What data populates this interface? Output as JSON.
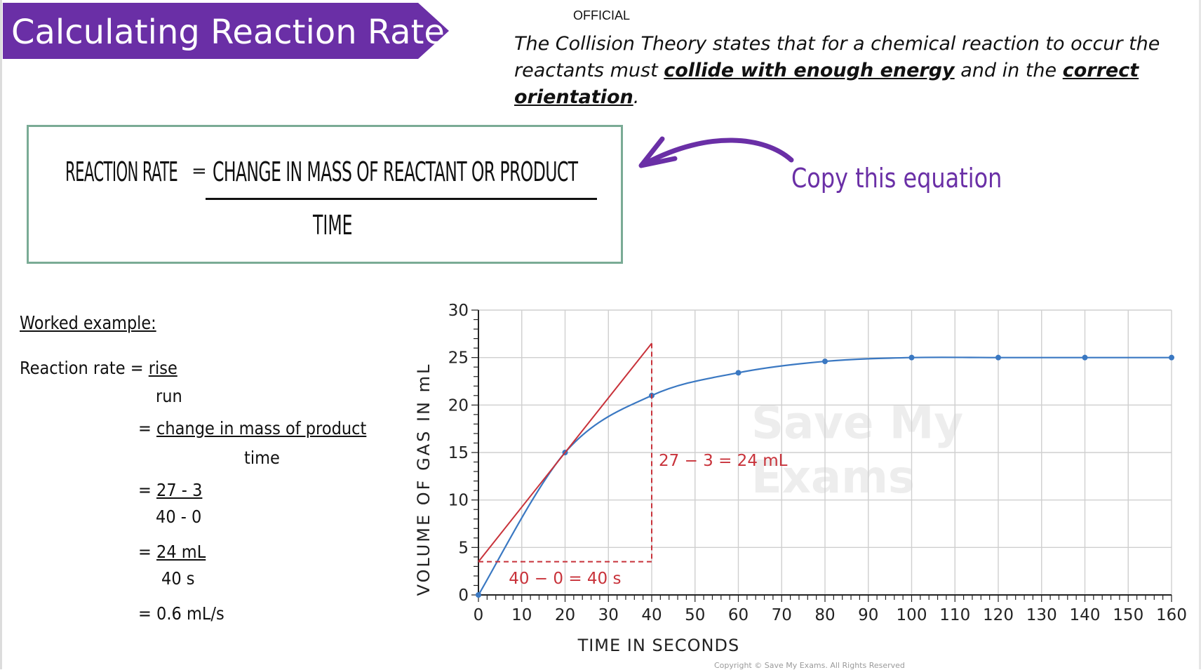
{
  "header": {
    "title": "Calculating Reaction Rate",
    "banner_color": "#6a2fa6",
    "classification": "OFFICIAL"
  },
  "collision_theory": {
    "part1": "The Collision Theory states that for a chemical reaction to occur the reactants must ",
    "bold1": "collide with enough energy",
    "part2": " and in the ",
    "bold2": "correct orientation",
    "part3": "."
  },
  "equation": {
    "lhs": "REACTION RATE",
    "equals": "=",
    "numerator": "CHANGE IN MASS OF REACTANT OR PRODUCT",
    "denominator": "TIME",
    "border_color": "#7aab95"
  },
  "note": {
    "text": "Copy this equation",
    "color": "#6a2fa6",
    "arrow_icon": "curved-arrow-left-icon"
  },
  "worked_example": {
    "heading": "Worked example:",
    "l1a": "Reaction rate = ",
    "l1b": "rise",
    "l2": "run",
    "l3a": "= ",
    "l3b": "change in mass of product",
    "l4": "time",
    "l5a": "= ",
    "l5b": "27 - 3",
    "l6": "40 - 0",
    "l7a": "= ",
    "l7b": "24 mL",
    "l8": "40 s",
    "l9": "= 0.6 mL/s"
  },
  "chart_data": {
    "type": "line",
    "xlabel": "TIME IN SECONDS",
    "ylabel": "VOLUME OF GAS IN mL",
    "xlim": [
      0,
      160
    ],
    "ylim": [
      0,
      30
    ],
    "xticks": [
      0,
      10,
      20,
      30,
      40,
      50,
      60,
      70,
      80,
      90,
      100,
      110,
      120,
      130,
      140,
      150,
      160
    ],
    "yticks": [
      0,
      5,
      10,
      15,
      20,
      25,
      30
    ],
    "grid": true,
    "series": [
      {
        "color": "#3a78c2",
        "x": [
          0,
          20,
          40,
          60,
          80,
          100,
          120,
          140,
          160
        ],
        "y": [
          0,
          15,
          21,
          23.4,
          24.6,
          25,
          25,
          25,
          25
        ]
      }
    ],
    "tangent": {
      "color": "#c8323a",
      "x": [
        0,
        40
      ],
      "y": [
        3.5,
        26.5
      ]
    },
    "annotations": {
      "rise_label": "27 − 3 = 24 mL",
      "run_label": "40 − 0 = 40 s",
      "color": "#c8323a"
    },
    "watermark_line1": "Save My",
    "watermark_line2": "Exams"
  },
  "footer": {
    "copyright": "Copyright © Save My Exams. All Rights Reserved"
  }
}
